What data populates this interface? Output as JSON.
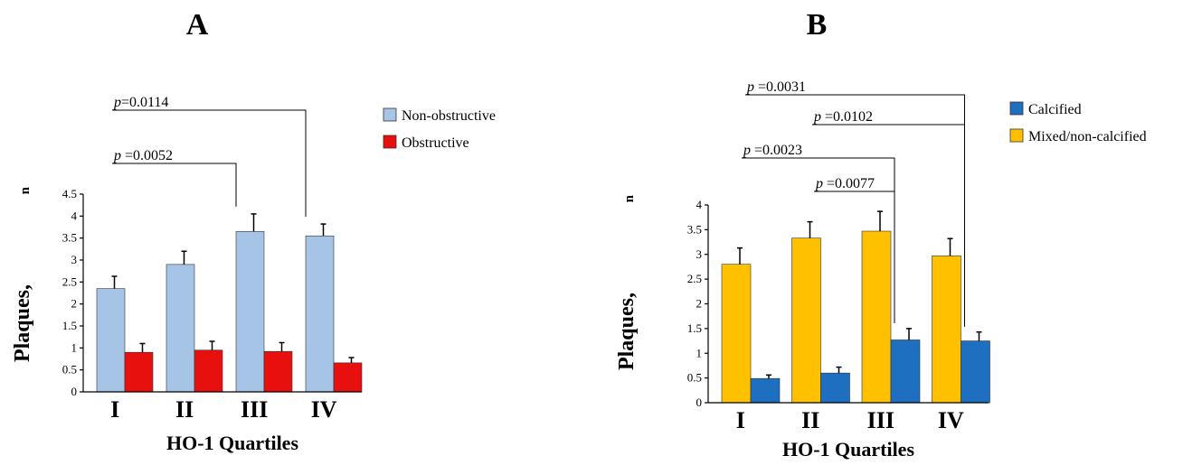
{
  "chart_data": [
    {
      "panel": "A",
      "type": "bar",
      "categories": [
        "I",
        "II",
        "III",
        "IV"
      ],
      "xlabel": "HO-1 Quartiles",
      "ylabel": "Plaques,",
      "ylabel_suffix": "n",
      "ylim": [
        0,
        4.5
      ],
      "yticks": [
        "0",
        "0.5",
        "1",
        "1.5",
        "2",
        "2.5",
        "3",
        "3.5",
        "4",
        "4.5"
      ],
      "grid": false,
      "legend_position": "top-right",
      "series": [
        {
          "name": "Non-obstructive",
          "color": "#a6c4e6",
          "values": [
            2.35,
            2.9,
            3.65,
            3.55
          ],
          "errors": [
            0.28,
            0.3,
            0.4,
            0.27
          ]
        },
        {
          "name": "Obstructive",
          "color": "#e8100f",
          "values": [
            0.9,
            0.95,
            0.92,
            0.66
          ],
          "errors": [
            0.2,
            0.2,
            0.2,
            0.12
          ]
        }
      ],
      "annotations": [
        {
          "p": "p",
          "text": " =0.0052",
          "from": "I",
          "to": "III"
        },
        {
          "p": "p",
          "text": "=0.0114",
          "from": "I",
          "to": "IV"
        }
      ]
    },
    {
      "panel": "B",
      "type": "bar",
      "categories": [
        "I",
        "II",
        "III",
        "IV"
      ],
      "xlabel": "HO-1 Quartiles",
      "ylabel": "Plaques,",
      "ylabel_suffix": "n",
      "ylim": [
        0,
        4
      ],
      "yticks": [
        "0",
        "0.5",
        "1",
        "1.5",
        "2",
        "2.5",
        "3",
        "3.5",
        "4"
      ],
      "grid": false,
      "legend_position": "top-right",
      "series": [
        {
          "name": "Mixed/non-calcified",
          "color": "#ffc000",
          "values": [
            2.8,
            3.33,
            3.47,
            2.97
          ],
          "errors": [
            0.33,
            0.33,
            0.4,
            0.35
          ]
        },
        {
          "name": "Calcified",
          "color": "#1e6fc0",
          "values": [
            0.49,
            0.6,
            1.27,
            1.25
          ],
          "errors": [
            0.07,
            0.12,
            0.23,
            0.18
          ]
        }
      ],
      "legend_order": [
        "Calcified",
        "Mixed/non-calcified"
      ],
      "annotations": [
        {
          "p": "p",
          "text": " =0.0031",
          "from": "I",
          "to": "IV"
        },
        {
          "p": "p",
          "text": " =0.0102",
          "from": "II",
          "to": "IV"
        },
        {
          "p": "p",
          "text": " =0.0023",
          "from": "I",
          "to": "III"
        },
        {
          "p": "p",
          "text": " =0.0077",
          "from": "II",
          "to": "III"
        }
      ]
    }
  ]
}
